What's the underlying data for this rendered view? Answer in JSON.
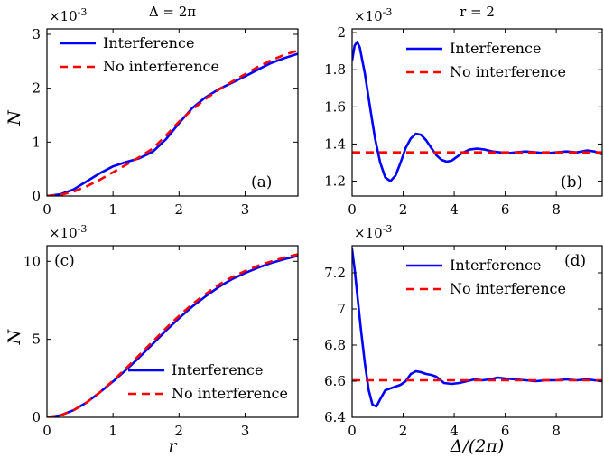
{
  "chart_data": [
    {
      "type": "line",
      "panel_label": "(a)",
      "title": "Δ = 2π",
      "ylabel": "N",
      "xlabel": "",
      "y_scale_label": "×10",
      "y_scale_exp": "-3",
      "xlim": [
        0,
        3.8
      ],
      "ylim": [
        0,
        3.1
      ],
      "xticks": [
        0,
        1,
        2,
        3
      ],
      "yticks": [
        0,
        1,
        2,
        3
      ],
      "legend_position": "top-left",
      "series": [
        {
          "name": "Interference",
          "color": "#0000ff",
          "dash": "solid",
          "x": [
            0,
            0.2,
            0.4,
            0.6,
            0.8,
            1.0,
            1.2,
            1.4,
            1.6,
            1.8,
            2.0,
            2.2,
            2.4,
            2.6,
            2.8,
            3.0,
            3.2,
            3.4,
            3.6,
            3.8
          ],
          "y": [
            0,
            0.03,
            0.12,
            0.27,
            0.42,
            0.55,
            0.63,
            0.7,
            0.82,
            1.05,
            1.35,
            1.63,
            1.83,
            1.98,
            2.1,
            2.22,
            2.35,
            2.47,
            2.56,
            2.64
          ]
        },
        {
          "name": "No interference",
          "color": "#ff0000",
          "dash": "dashed",
          "x": [
            0,
            0.2,
            0.4,
            0.6,
            0.8,
            1.0,
            1.2,
            1.4,
            1.6,
            1.8,
            2.0,
            2.2,
            2.4,
            2.6,
            2.8,
            3.0,
            3.2,
            3.4,
            3.6,
            3.8
          ],
          "y": [
            0,
            0.02,
            0.08,
            0.18,
            0.3,
            0.44,
            0.58,
            0.72,
            0.88,
            1.12,
            1.38,
            1.6,
            1.8,
            1.97,
            2.12,
            2.26,
            2.4,
            2.52,
            2.62,
            2.7
          ]
        }
      ]
    },
    {
      "type": "line",
      "panel_label": "(b)",
      "title": "r = 2",
      "ylabel": "",
      "xlabel": "",
      "y_scale_label": "×10",
      "y_scale_exp": "-3",
      "xlim": [
        0,
        9.8
      ],
      "ylim": [
        1.12,
        2.02
      ],
      "xticks": [
        0,
        2,
        4,
        6,
        8
      ],
      "yticks": [
        1.2,
        1.4,
        1.6,
        1.8,
        2
      ],
      "legend_position": "top-right",
      "series": [
        {
          "name": "Interference",
          "color": "#0000ff",
          "dash": "solid",
          "x": [
            0,
            0.1,
            0.2,
            0.3,
            0.5,
            0.7,
            0.9,
            1.1,
            1.3,
            1.5,
            1.7,
            1.9,
            2.1,
            2.3,
            2.5,
            2.7,
            2.9,
            3.1,
            3.3,
            3.5,
            3.7,
            3.9,
            4.1,
            4.3,
            4.6,
            4.9,
            5.2,
            5.5,
            5.8,
            6.1,
            6.4,
            6.8,
            7.2,
            7.6,
            8.0,
            8.4,
            8.8,
            9.2,
            9.5,
            9.8
          ],
          "y": [
            1.85,
            1.93,
            1.95,
            1.92,
            1.78,
            1.6,
            1.43,
            1.3,
            1.22,
            1.2,
            1.23,
            1.3,
            1.38,
            1.43,
            1.455,
            1.45,
            1.42,
            1.38,
            1.34,
            1.315,
            1.305,
            1.31,
            1.33,
            1.35,
            1.37,
            1.375,
            1.37,
            1.36,
            1.355,
            1.35,
            1.355,
            1.36,
            1.355,
            1.35,
            1.355,
            1.36,
            1.355,
            1.365,
            1.36,
            1.345
          ]
        },
        {
          "name": "No interference",
          "color": "#ff0000",
          "dash": "dashed",
          "x": [
            0,
            9.8
          ],
          "y": [
            1.355,
            1.355
          ]
        }
      ]
    },
    {
      "type": "line",
      "panel_label": "(c)",
      "title": "",
      "ylabel": "N",
      "xlabel": "r",
      "y_scale_label": "×10",
      "y_scale_exp": "-3",
      "xlim": [
        0,
        3.8
      ],
      "ylim": [
        0,
        11
      ],
      "xticks": [
        0,
        1,
        2,
        3
      ],
      "yticks": [
        0,
        5,
        10
      ],
      "legend_position": "bottom-right",
      "series": [
        {
          "name": "Interference",
          "color": "#0000ff",
          "dash": "solid",
          "x": [
            0,
            0.2,
            0.4,
            0.6,
            0.8,
            1.0,
            1.2,
            1.4,
            1.6,
            1.8,
            2.0,
            2.2,
            2.4,
            2.6,
            2.8,
            3.0,
            3.2,
            3.4,
            3.6,
            3.8
          ],
          "y": [
            0,
            0.12,
            0.45,
            0.95,
            1.6,
            2.3,
            3.05,
            3.85,
            4.7,
            5.55,
            6.35,
            7.1,
            7.75,
            8.35,
            8.85,
            9.25,
            9.6,
            9.9,
            10.15,
            10.35
          ]
        },
        {
          "name": "No interference",
          "color": "#ff0000",
          "dash": "dashed",
          "x": [
            0,
            0.2,
            0.4,
            0.6,
            0.8,
            1.0,
            1.2,
            1.4,
            1.6,
            1.8,
            2.0,
            2.2,
            2.4,
            2.6,
            2.8,
            3.0,
            3.2,
            3.4,
            3.6,
            3.8
          ],
          "y": [
            0,
            0.12,
            0.45,
            0.95,
            1.6,
            2.35,
            3.15,
            4.0,
            4.85,
            5.7,
            6.5,
            7.25,
            7.9,
            8.5,
            8.98,
            9.38,
            9.72,
            10.0,
            10.25,
            10.45
          ]
        }
      ]
    },
    {
      "type": "line",
      "panel_label": "(d)",
      "title": "",
      "ylabel": "",
      "xlabel": "Δ/(2π)",
      "y_scale_label": "×10",
      "y_scale_exp": "-3",
      "xlim": [
        0,
        9.8
      ],
      "ylim": [
        6.4,
        7.35
      ],
      "xticks": [
        0,
        2,
        4,
        6,
        8
      ],
      "yticks": [
        6.4,
        6.6,
        6.8,
        7,
        7.2
      ],
      "legend_position": "top-right",
      "series": [
        {
          "name": "Interference",
          "color": "#0000ff",
          "dash": "solid",
          "x": [
            0,
            0.1,
            0.2,
            0.35,
            0.5,
            0.65,
            0.8,
            0.95,
            1.1,
            1.3,
            1.5,
            1.7,
            1.9,
            2.1,
            2.3,
            2.5,
            2.7,
            2.9,
            3.1,
            3.3,
            3.6,
            3.9,
            4.2,
            4.5,
            4.8,
            5.1,
            5.4,
            5.7,
            6.0,
            6.4,
            6.8,
            7.2,
            7.6,
            8.0,
            8.4,
            8.8,
            9.2,
            9.5,
            9.8
          ],
          "y": [
            7.33,
            7.22,
            7.08,
            6.88,
            6.7,
            6.55,
            6.47,
            6.46,
            6.5,
            6.55,
            6.56,
            6.57,
            6.58,
            6.6,
            6.64,
            6.655,
            6.65,
            6.64,
            6.635,
            6.625,
            6.59,
            6.585,
            6.59,
            6.6,
            6.61,
            6.605,
            6.61,
            6.62,
            6.615,
            6.61,
            6.605,
            6.6,
            6.605,
            6.605,
            6.61,
            6.605,
            6.61,
            6.605,
            6.6
          ]
        },
        {
          "name": "No interference",
          "color": "#ff0000",
          "dash": "dashed",
          "x": [
            0,
            9.8
          ],
          "y": [
            6.605,
            6.605
          ]
        }
      ]
    }
  ]
}
